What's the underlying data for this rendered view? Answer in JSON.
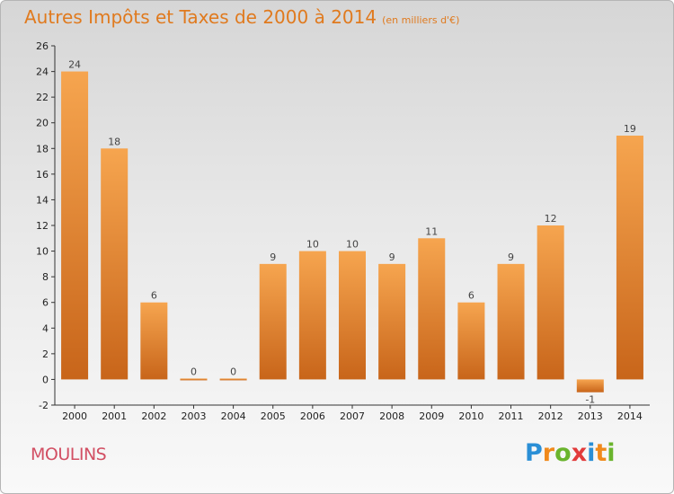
{
  "title": "Autres Impôts et Taxes de 2000 à 2014",
  "subtitle": "(en milliers d'€)",
  "commune": "MOULINS",
  "logo": {
    "letters": [
      "P",
      "r",
      "o",
      "x",
      "i",
      "t",
      "i"
    ],
    "colors": [
      "#2a8fd6",
      "#f08a1c",
      "#6ab42d",
      "#e23b3b",
      "#2a8fd6",
      "#f08a1c",
      "#6ab42d"
    ]
  },
  "colors": {
    "bar_top": "#f6a54f",
    "bar_bottom": "#c8651a",
    "title": "#e07a1e",
    "commune": "#d24f63"
  },
  "chart_data": {
    "type": "bar",
    "title": "Autres Impôts et Taxes de 2000 à 2014",
    "subtitle": "(en milliers d'€)",
    "categories": [
      "2000",
      "2001",
      "2002",
      "2003",
      "2004",
      "2005",
      "2006",
      "2007",
      "2008",
      "2009",
      "2010",
      "2011",
      "2012",
      "2013",
      "2014"
    ],
    "values": [
      24,
      18,
      6,
      0,
      0,
      9,
      10,
      10,
      9,
      11,
      6,
      9,
      12,
      -1,
      19
    ],
    "ylim": [
      -2,
      26
    ],
    "yticks": [
      -2,
      0,
      2,
      4,
      6,
      8,
      10,
      12,
      14,
      16,
      18,
      20,
      22,
      24,
      26
    ],
    "grid": false
  }
}
